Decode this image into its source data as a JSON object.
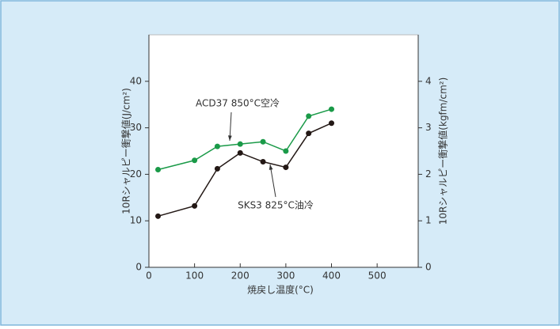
{
  "chart_data": {
    "type": "line",
    "x": [
      20,
      100,
      150,
      200,
      250,
      300,
      350,
      400
    ],
    "series": [
      {
        "name": "ACD37 850°C空冷",
        "color": "#1a9a48",
        "values": [
          21,
          23,
          26,
          26.5,
          27,
          25,
          32.5,
          34
        ]
      },
      {
        "name": "SKS3 825°C油冷",
        "color": "#231815",
        "values": [
          11,
          13.2,
          21.2,
          24.6,
          22.7,
          21.5,
          28.8,
          31
        ]
      }
    ],
    "xlabel": "焼戻し温度(°C)",
    "ylabel": "10Rシャルピー衝撃値(J/cm²)",
    "y2label": "10Rシャルピー衝撃値(kgfm/cm²)",
    "xlim": [
      0,
      590
    ],
    "xticks": [
      0,
      100,
      200,
      300,
      400,
      500
    ],
    "ylim": [
      0,
      50
    ],
    "yticks": [
      0,
      10,
      20,
      30,
      40
    ],
    "y2lim": [
      0,
      5
    ],
    "y2ticks": [
      0,
      1,
      2,
      3,
      4
    ]
  }
}
